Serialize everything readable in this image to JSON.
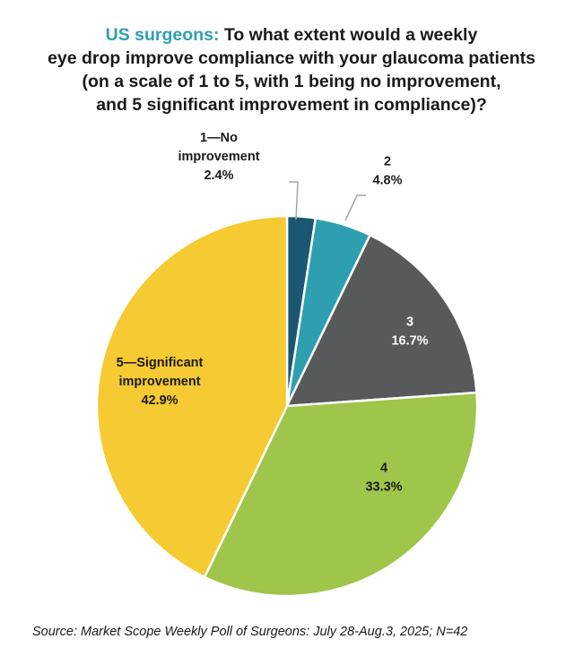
{
  "title": {
    "lead": "US surgeons:",
    "line1": "To what extent would a weekly",
    "line2": "eye drop improve compliance  with your glaucoma patients",
    "line3": "(on a scale of 1 to 5, with 1 being no improvement,",
    "line4": "and 5 significant improvement in compliance)?"
  },
  "source": "Source: Market Scope Weekly Poll of Surgeons: July 28-Aug.3, 2025; N=42",
  "chart_data": {
    "type": "pie",
    "start_angle_deg": 0,
    "direction": "clockwise",
    "slices": [
      {
        "label_lines": [
          "1—No",
          "improvement"
        ],
        "value": 2.4,
        "value_label": "2.4%",
        "color": "#1b5673",
        "label_color": "#1a1a1a"
      },
      {
        "label_lines": [
          "2"
        ],
        "value": 4.8,
        "value_label": "4.8%",
        "color": "#2e9fb0",
        "label_color": "#1a1a1a"
      },
      {
        "label_lines": [
          "3"
        ],
        "value": 16.7,
        "value_label": "16.7%",
        "color": "#58595b",
        "label_color": "#ffffff"
      },
      {
        "label_lines": [
          "4"
        ],
        "value": 33.3,
        "value_label": "33.3%",
        "color": "#9fc54a",
        "label_color": "#1a1a1a"
      },
      {
        "label_lines": [
          "5—Significant",
          "improvement"
        ],
        "value": 42.9,
        "value_label": "42.9%",
        "color": "#f5ca32",
        "label_color": "#1a1a1a"
      }
    ]
  }
}
